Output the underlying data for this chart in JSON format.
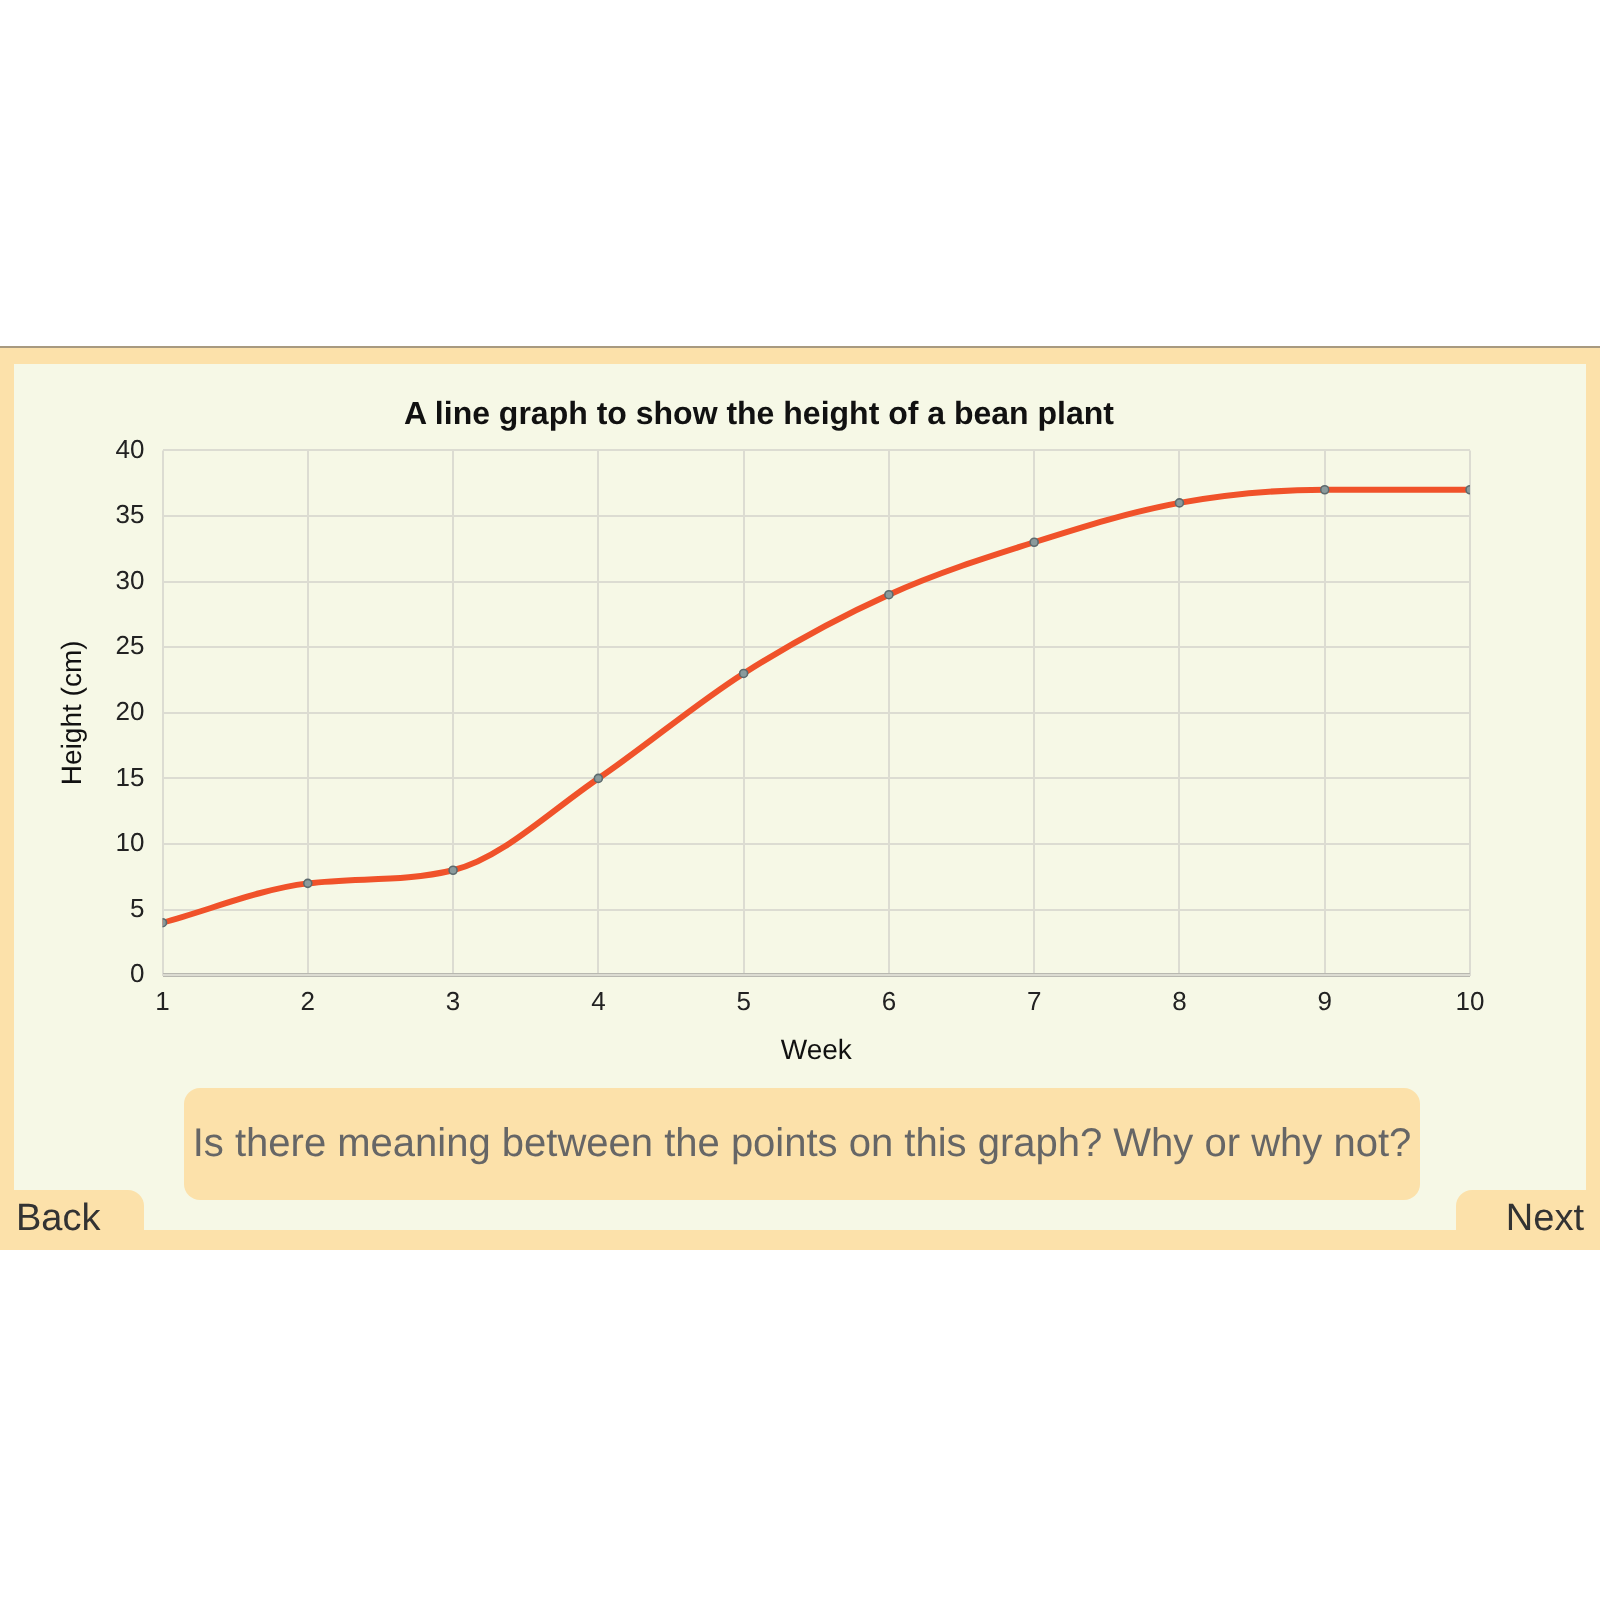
{
  "chart_data": {
    "type": "line",
    "title": "A line graph to show the height of a bean plant",
    "xlabel": "Week",
    "ylabel": "Height (cm)",
    "x": [
      1,
      2,
      3,
      4,
      5,
      6,
      7,
      8,
      9,
      10
    ],
    "series": [
      {
        "color": "#f0522a",
        "values": [
          4,
          7,
          8,
          15,
          23,
          29,
          33,
          36,
          37,
          37
        ]
      }
    ],
    "xlim": [
      1,
      10
    ],
    "xticks": [
      1,
      2,
      3,
      4,
      5,
      6,
      7,
      8,
      9,
      10
    ],
    "ylim": [
      0,
      40
    ],
    "yticks": [
      0,
      5,
      10,
      15,
      20,
      25,
      30,
      35,
      40
    ],
    "grid": true,
    "legend": false,
    "marker": "circle",
    "annotations": [
      "Is there meaning between the points on this graph? Why or why not?",
      "Back",
      "Next"
    ]
  }
}
